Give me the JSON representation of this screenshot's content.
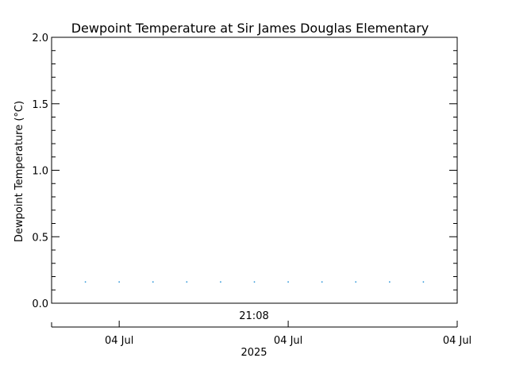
{
  "chart_data": {
    "type": "scatter",
    "title": "Dewpoint Temperature at Sir James Douglas Elementary",
    "ylabel": "Dewpoint Temperature (°C)",
    "xlabel": "",
    "ylim": [
      0.0,
      2.0
    ],
    "y_ticks": [
      {
        "value": 0.0,
        "label": "0.0"
      },
      {
        "value": 0.5,
        "label": "0.5"
      },
      {
        "value": 1.0,
        "label": "1.0"
      },
      {
        "value": 1.5,
        "label": "1.5"
      },
      {
        "value": 2.0,
        "label": "2.0"
      }
    ],
    "xlim": [
      0,
      12
    ],
    "time_axis_label": "21:08",
    "date_ticks": [
      {
        "value": 2,
        "label": "04 Jul"
      },
      {
        "value": 7,
        "label": "04 Jul"
      },
      {
        "value": 12,
        "label": "04 Jul"
      }
    ],
    "year_label": "2025",
    "series": [
      {
        "color": "#1f8fd6",
        "points": [
          {
            "x": 1,
            "y": 0.16
          },
          {
            "x": 2,
            "y": 0.16
          },
          {
            "x": 3,
            "y": 0.16
          },
          {
            "x": 4,
            "y": 0.16
          },
          {
            "x": 5,
            "y": 0.16
          },
          {
            "x": 6,
            "y": 0.16
          },
          {
            "x": 7,
            "y": 0.16
          },
          {
            "x": 8,
            "y": 0.16
          },
          {
            "x": 9,
            "y": 0.16
          },
          {
            "x": 10,
            "y": 0.16
          },
          {
            "x": 11,
            "y": 0.16
          }
        ]
      }
    ],
    "grid": false,
    "legend": "none"
  }
}
